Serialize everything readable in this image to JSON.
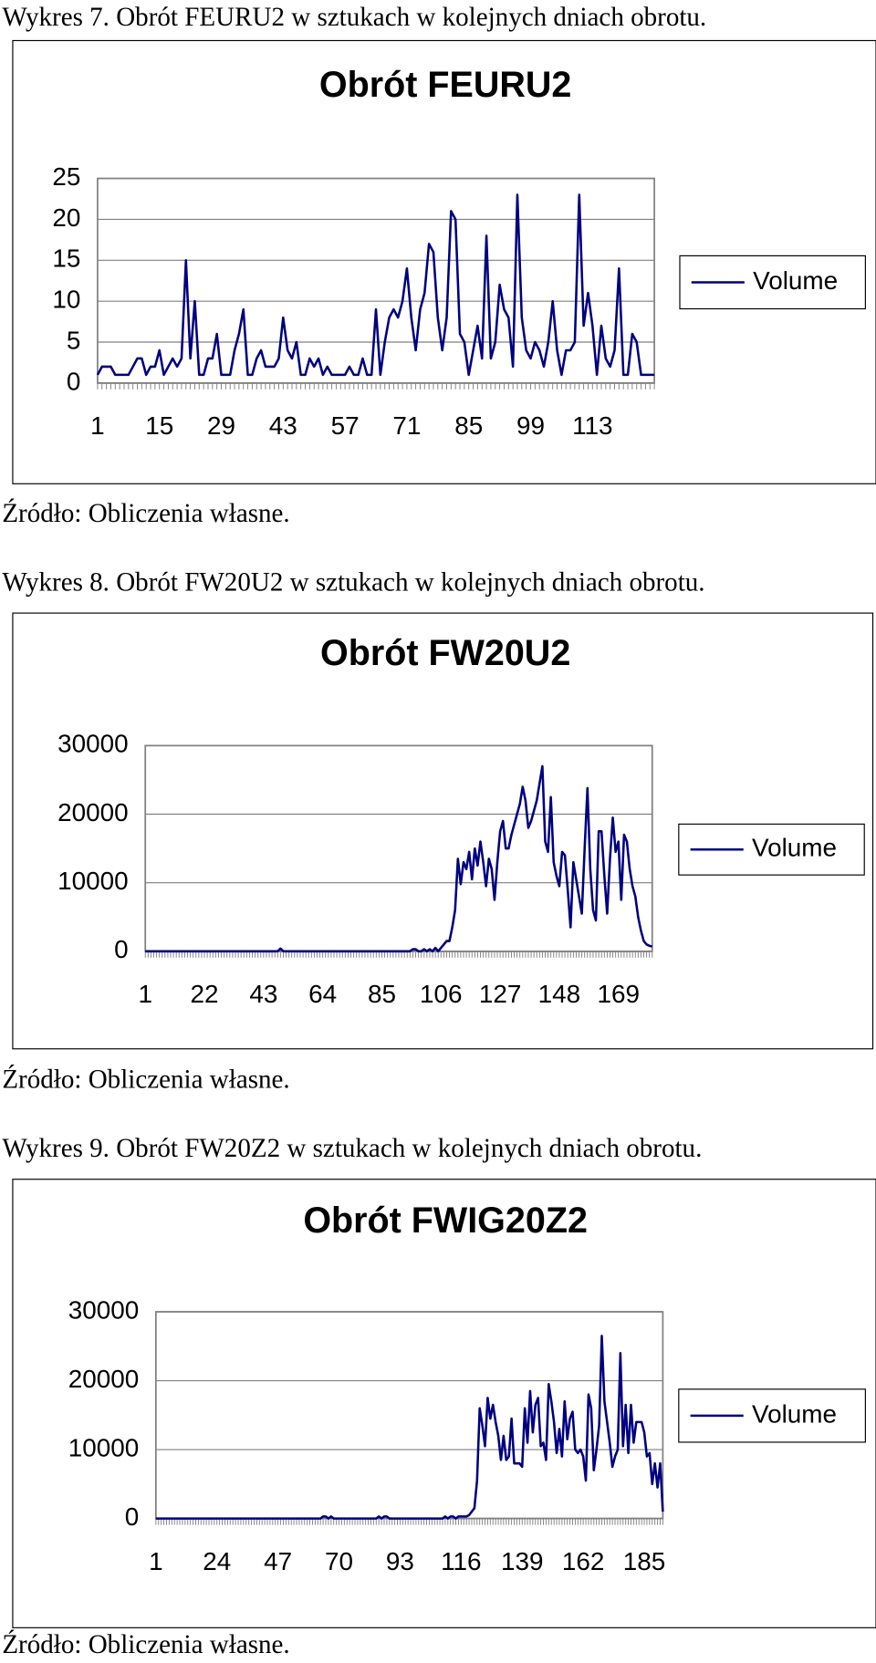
{
  "captions": [
    "Wykres 7. Obrót FEURU2 w sztukach w kolejnych dniach obrotu.",
    "Wykres 8. Obrót FW20U2 w sztukach w kolejnych dniach obrotu.",
    "Wykres 9. Obrót FW20Z2 w sztukach w kolejnych dniach obrotu."
  ],
  "sources": [
    "Źródło: Obliczenia własne.",
    "Źródło: Obliczenia własne.",
    "Źródło: Obliczenia własne."
  ],
  "chart_data": [
    {
      "type": "line",
      "title": "Obrót FEURU2",
      "grid": true,
      "legend": "right",
      "ylim": [
        0,
        25
      ],
      "yticks": [
        0,
        5,
        10,
        15,
        20,
        25
      ],
      "categories": [
        1,
        null,
        null,
        null,
        null,
        null,
        null,
        null,
        null,
        null,
        null,
        null,
        null,
        null,
        15,
        null,
        null,
        null,
        null,
        null,
        null,
        null,
        null,
        null,
        null,
        null,
        null,
        null,
        29,
        null,
        null,
        null,
        null,
        null,
        null,
        null,
        null,
        null,
        null,
        null,
        null,
        null,
        43,
        null,
        null,
        null,
        null,
        null,
        null,
        null,
        null,
        null,
        null,
        null,
        null,
        null,
        57,
        null,
        null,
        null,
        null,
        null,
        null,
        null,
        null,
        null,
        null,
        null,
        null,
        null,
        71,
        null,
        null,
        null,
        null,
        null,
        null,
        null,
        null,
        null,
        null,
        null,
        null,
        null,
        85,
        null,
        null,
        null,
        null,
        null,
        null,
        null,
        null,
        null,
        null,
        null,
        null,
        null,
        99,
        null,
        null,
        null,
        null,
        null,
        null,
        null,
        null,
        null,
        null,
        null,
        null,
        null,
        113,
        null,
        null,
        null,
        null,
        null,
        null,
        null,
        null,
        null,
        null,
        null,
        null,
        null,
        null
      ],
      "series": [
        {
          "name": "Volume",
          "color": "#000080",
          "values": [
            1,
            2,
            2,
            2,
            1,
            1,
            1,
            1,
            2,
            3,
            3,
            1,
            2,
            2,
            4,
            1,
            2,
            3,
            2,
            3,
            15,
            3,
            10,
            1,
            1,
            3,
            3,
            6,
            1,
            1,
            1,
            4,
            6,
            9,
            1,
            1,
            3,
            4,
            2,
            2,
            2,
            3,
            8,
            4,
            3,
            5,
            1,
            1,
            3,
            2,
            3,
            1,
            2,
            1,
            1,
            1,
            1,
            2,
            1,
            1,
            3,
            1,
            1,
            9,
            1,
            5,
            8,
            9,
            8,
            10,
            14,
            8,
            4,
            9,
            11,
            17,
            16,
            8,
            4,
            8,
            21,
            20,
            6,
            5,
            1,
            4,
            7,
            3,
            18,
            3,
            5,
            12,
            9,
            8,
            2,
            23,
            8,
            4,
            3,
            5,
            4,
            2,
            5,
            10,
            4,
            1,
            4,
            4,
            5,
            23,
            7,
            11,
            7,
            1,
            7,
            3,
            2,
            4,
            14,
            1,
            1,
            6,
            5,
            1,
            1,
            1,
            1
          ]
        }
      ]
    },
    {
      "type": "line",
      "title": "Obrót FW20U2",
      "grid": true,
      "legend": "right",
      "ylim": [
        0,
        30000
      ],
      "yticks": [
        0,
        10000,
        20000,
        30000
      ],
      "categories": [
        1,
        null,
        null,
        null,
        null,
        null,
        null,
        null,
        null,
        null,
        null,
        null,
        null,
        null,
        null,
        null,
        null,
        null,
        null,
        null,
        null,
        22,
        null,
        null,
        null,
        null,
        null,
        null,
        null,
        null,
        null,
        null,
        null,
        null,
        null,
        null,
        null,
        null,
        null,
        null,
        null,
        null,
        43,
        null,
        null,
        null,
        null,
        null,
        null,
        null,
        null,
        null,
        null,
        null,
        null,
        null,
        null,
        null,
        null,
        null,
        null,
        null,
        null,
        64,
        null,
        null,
        null,
        null,
        null,
        null,
        null,
        null,
        null,
        null,
        null,
        null,
        null,
        null,
        null,
        null,
        null,
        null,
        null,
        null,
        85,
        null,
        null,
        null,
        null,
        null,
        null,
        null,
        null,
        null,
        null,
        null,
        null,
        null,
        null,
        null,
        null,
        null,
        null,
        null,
        null,
        106,
        null,
        null,
        null,
        null,
        null,
        null,
        null,
        null,
        null,
        null,
        null,
        null,
        null,
        null,
        null,
        null,
        null,
        null,
        null,
        null,
        127,
        null,
        null,
        null,
        null,
        null,
        null,
        null,
        null,
        null,
        null,
        null,
        null,
        null,
        null,
        null,
        null,
        null,
        null,
        null,
        null,
        148,
        null,
        null,
        null,
        null,
        null,
        null,
        null,
        null,
        null,
        null,
        null,
        null,
        null,
        null,
        null,
        null,
        null,
        null,
        null,
        null,
        169,
        null,
        null,
        null,
        null,
        null,
        null,
        null,
        null,
        null,
        null,
        null,
        null
      ],
      "series": [
        {
          "name": "Volume",
          "color": "#000080",
          "values": [
            0,
            0,
            0,
            0,
            0,
            0,
            0,
            0,
            0,
            0,
            0,
            0,
            0,
            0,
            0,
            0,
            0,
            0,
            0,
            0,
            0,
            0,
            0,
            0,
            0,
            0,
            0,
            0,
            0,
            0,
            0,
            0,
            0,
            0,
            0,
            0,
            0,
            0,
            0,
            0,
            0,
            0,
            0,
            0,
            0,
            0,
            0,
            0,
            400,
            0,
            0,
            0,
            0,
            0,
            0,
            0,
            0,
            0,
            0,
            0,
            0,
            0,
            0,
            0,
            0,
            0,
            0,
            0,
            0,
            0,
            0,
            0,
            0,
            0,
            0,
            0,
            0,
            0,
            0,
            0,
            0,
            0,
            0,
            0,
            0,
            0,
            0,
            0,
            0,
            0,
            0,
            0,
            0,
            0,
            0,
            300,
            300,
            0,
            0,
            300,
            0,
            300,
            0,
            500,
            0,
            500,
            1000,
            1500,
            1500,
            3500,
            6000,
            13500,
            9800,
            13000,
            12000,
            14500,
            10500,
            15000,
            12500,
            16000,
            13000,
            9500,
            13500,
            12000,
            7500,
            13000,
            17500,
            19000,
            15000,
            15000,
            17000,
            18500,
            20000,
            21500,
            24000,
            22000,
            18000,
            19000,
            20500,
            22000,
            24500,
            27000,
            16000,
            14500,
            22500,
            13000,
            11000,
            9500,
            14500,
            14000,
            9000,
            3500,
            13000,
            10500,
            8000,
            5500,
            15000,
            23800,
            12000,
            6000,
            4500,
            17500,
            17500,
            11000,
            5500,
            13500,
            19500,
            14500,
            16000,
            7500,
            17000,
            16000,
            12000,
            9500,
            8000,
            5000,
            3000,
            1500,
            1000,
            800,
            700
          ]
        }
      ]
    },
    {
      "type": "line",
      "title": "Obrót FWIG20Z2",
      "grid": true,
      "legend": "right",
      "ylim": [
        0,
        30000
      ],
      "yticks": [
        0,
        10000,
        20000,
        30000
      ],
      "categories": [
        1,
        null,
        null,
        null,
        null,
        null,
        null,
        null,
        null,
        null,
        null,
        null,
        null,
        null,
        null,
        null,
        null,
        null,
        null,
        null,
        null,
        null,
        null,
        24,
        null,
        null,
        null,
        null,
        null,
        null,
        null,
        null,
        null,
        null,
        null,
        null,
        null,
        null,
        null,
        null,
        null,
        null,
        null,
        null,
        null,
        null,
        47,
        null,
        null,
        null,
        null,
        null,
        null,
        null,
        null,
        null,
        null,
        null,
        null,
        null,
        null,
        null,
        null,
        null,
        null,
        null,
        null,
        null,
        null,
        70,
        null,
        null,
        null,
        null,
        null,
        null,
        null,
        null,
        null,
        null,
        null,
        null,
        null,
        null,
        null,
        null,
        null,
        null,
        null,
        null,
        null,
        null,
        93,
        null,
        null,
        null,
        null,
        null,
        null,
        null,
        null,
        null,
        null,
        null,
        null,
        null,
        null,
        null,
        null,
        null,
        null,
        null,
        null,
        null,
        null,
        116,
        null,
        null,
        null,
        null,
        null,
        null,
        null,
        null,
        null,
        null,
        null,
        null,
        null,
        null,
        null,
        null,
        null,
        null,
        null,
        null,
        null,
        null,
        139,
        null,
        null,
        null,
        null,
        null,
        null,
        null,
        null,
        null,
        null,
        null,
        null,
        null,
        null,
        null,
        null,
        null,
        null,
        null,
        null,
        null,
        null,
        162,
        null,
        null,
        null,
        null,
        null,
        null,
        null,
        null,
        null,
        null,
        null,
        null,
        null,
        null,
        null,
        null,
        null,
        null,
        null,
        null,
        null,
        null,
        185,
        null,
        null,
        null,
        null,
        null,
        null,
        null
      ],
      "series": [
        {
          "name": "Volume",
          "color": "#000080",
          "values": [
            0,
            0,
            0,
            0,
            0,
            0,
            0,
            0,
            0,
            0,
            0,
            0,
            0,
            0,
            0,
            0,
            0,
            0,
            0,
            0,
            0,
            0,
            0,
            0,
            0,
            0,
            0,
            0,
            0,
            0,
            0,
            0,
            0,
            0,
            0,
            0,
            0,
            0,
            0,
            0,
            0,
            0,
            0,
            0,
            0,
            0,
            0,
            0,
            0,
            0,
            0,
            0,
            0,
            0,
            0,
            0,
            0,
            0,
            0,
            0,
            0,
            0,
            0,
            300,
            300,
            0,
            300,
            0,
            0,
            0,
            0,
            0,
            0,
            0,
            0,
            0,
            0,
            0,
            0,
            0,
            0,
            0,
            0,
            0,
            300,
            0,
            300,
            300,
            0,
            0,
            0,
            0,
            0,
            0,
            0,
            0,
            0,
            0,
            0,
            0,
            0,
            0,
            0,
            0,
            0,
            0,
            0,
            0,
            0,
            300,
            0,
            300,
            300,
            0,
            300,
            300,
            300,
            300,
            500,
            1000,
            1500,
            5500,
            16000,
            13500,
            10500,
            17500,
            14500,
            16500,
            14000,
            12000,
            8500,
            12000,
            8500,
            9000,
            14500,
            8000,
            8000,
            8000,
            7500,
            16000,
            11000,
            18500,
            12500,
            16500,
            17500,
            10500,
            11000,
            8500,
            19500,
            17000,
            14000,
            9500,
            13000,
            9000,
            17000,
            11500,
            14500,
            15500,
            10000,
            9500,
            10000,
            9000,
            5500,
            18000,
            16000,
            7000,
            10000,
            13500,
            26500,
            17000,
            14000,
            11000,
            7500,
            9000,
            10000,
            24000,
            10500,
            16500,
            9500,
            16500,
            11000,
            14000,
            14000,
            14000,
            12500,
            9000,
            9500,
            5000,
            8000,
            4500,
            8000,
            1000
          ]
        }
      ]
    }
  ]
}
